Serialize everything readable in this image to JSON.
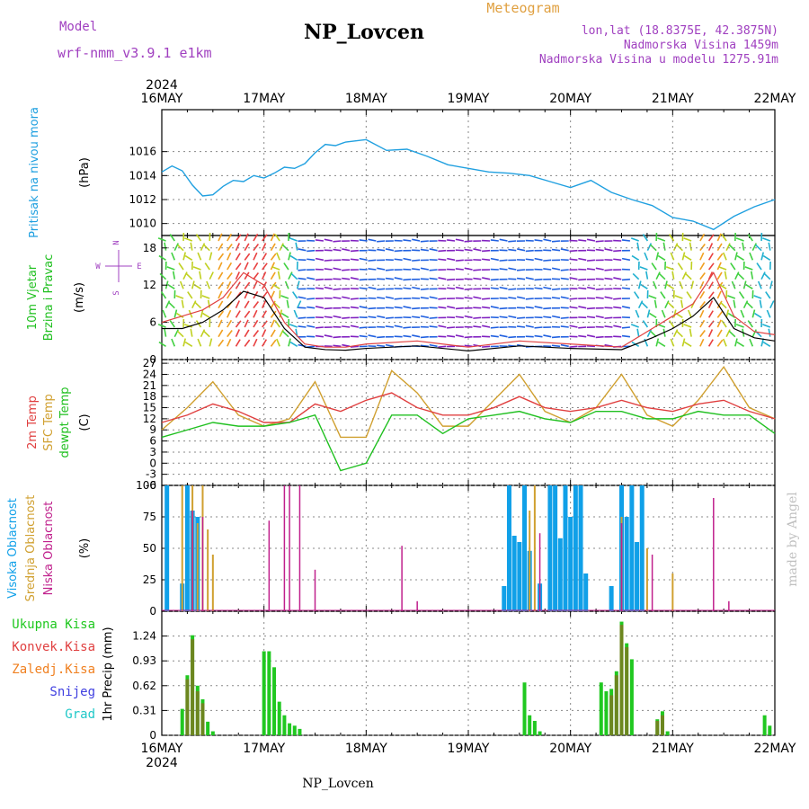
{
  "header": {
    "model_label": "Model",
    "model_name": "wrf-nmm_v3.9.1 e1km",
    "station_title": "NP_Lovcen",
    "meteogram_label": "Meteogram",
    "lonlat": "lon,lat (18.8375E, 42.3875N)",
    "altitude": "Nadmorska Visina 1459m",
    "model_altitude": "Nadmorska Visina u modelu 1275.91m",
    "footer_station": "NP_Lovcen",
    "credit": "made by Angel"
  },
  "colors": {
    "title_purple": "#a040c0",
    "title_orange": "#e0a040",
    "pressure": "#20a0e0",
    "temp2m": "#e04040",
    "sfc_temp": "#d0a030",
    "dewpoint": "#20c020",
    "high_cloud": "#10a0e8",
    "mid_cloud": "#d0a030",
    "low_cloud": "#c0208c",
    "total_precip": "#20c820",
    "conv_precip": "#e04040",
    "freezing_precip": "#f08020",
    "snow": "#4040e0",
    "hail": "#20c8c8",
    "credit": "#c0c0c0"
  },
  "time_axis": {
    "year": "2024",
    "day_labels": [
      "16MAY",
      "17MAY",
      "18MAY",
      "19MAY",
      "20MAY",
      "21MAY",
      "22MAY"
    ]
  },
  "chart_data": [
    {
      "type": "line",
      "panel": "pressure",
      "ylabel_lines": [
        "Pritisak na nivou mora"
      ],
      "unit": "(hPa)",
      "ylim": [
        1009,
        1019.5
      ],
      "yticks": [
        1010,
        1012,
        1014,
        1016
      ],
      "series": [
        {
          "x": [
            0,
            0.1,
            0.2,
            0.3,
            0.4,
            0.5,
            0.6,
            0.7,
            0.8,
            0.9,
            1.0,
            1.1,
            1.2,
            1.3,
            1.4,
            1.5,
            1.6,
            1.7,
            1.8,
            1.9,
            2.0,
            2.2,
            2.4,
            2.6,
            2.8,
            3.0,
            3.2,
            3.4,
            3.6,
            3.8,
            4.0,
            4.2,
            4.4,
            4.6,
            4.8,
            5.0,
            5.2,
            5.4,
            5.6,
            5.8,
            6.0
          ],
          "values": [
            1014.3,
            1014.8,
            1014.4,
            1013.2,
            1012.3,
            1012.4,
            1013.1,
            1013.6,
            1013.5,
            1014.0,
            1013.8,
            1014.2,
            1014.7,
            1014.6,
            1015.0,
            1015.9,
            1016.6,
            1016.5,
            1016.8,
            1016.9,
            1017.0,
            1016.1,
            1016.2,
            1015.6,
            1014.9,
            1014.6,
            1014.3,
            1014.2,
            1014.0,
            1013.5,
            1013.0,
            1013.6,
            1012.6,
            1012.0,
            1011.5,
            1010.5,
            1010.2,
            1009.5,
            1010.6,
            1011.4,
            1012.0
          ]
        }
      ]
    },
    {
      "type": "line",
      "panel": "wind",
      "ylabel_lines": [
        "10m Vjetar",
        "Brzina i Pravac"
      ],
      "unit": "(m/s)",
      "ylim": [
        0,
        20
      ],
      "yticks": [
        0,
        6,
        12,
        18
      ],
      "compass": [
        "N",
        "W",
        "E",
        "S"
      ],
      "series": [
        {
          "name": "speed",
          "x": [
            0,
            0.2,
            0.4,
            0.6,
            0.8,
            1.0,
            1.2,
            1.4,
            1.6,
            1.8,
            2.0,
            2.5,
            3.0,
            3.5,
            4.0,
            4.5,
            4.8,
            5.0,
            5.2,
            5.4,
            5.6,
            5.8,
            6.0
          ],
          "values": [
            5,
            5,
            6,
            8,
            11,
            10,
            5,
            2,
            1.6,
            1.5,
            1.8,
            2.2,
            1.4,
            2.2,
            1.8,
            1.6,
            3.5,
            5,
            7,
            10,
            5,
            3.5,
            3
          ]
        },
        {
          "name": "gust",
          "x": [
            0,
            0.2,
            0.4,
            0.6,
            0.8,
            1.0,
            1.2,
            1.4,
            1.6,
            1.8,
            2.0,
            2.5,
            3.0,
            3.5,
            4.0,
            4.5,
            4.8,
            5.0,
            5.2,
            5.4,
            5.6,
            5.8,
            6.0
          ],
          "values": [
            6,
            7,
            8,
            10,
            14,
            12,
            6,
            2.5,
            2,
            2,
            2.5,
            3,
            2,
            3,
            2.5,
            2,
            5,
            7,
            9,
            14,
            7,
            4.5,
            4
          ]
        }
      ]
    },
    {
      "type": "line",
      "panel": "temperature",
      "ylabel_lines": [
        "2m Temp",
        "SFC Temp",
        "dewpt Temp"
      ],
      "unit": "(C)",
      "ylim": [
        -6,
        28
      ],
      "yticks": [
        -6,
        -3,
        0,
        3,
        6,
        9,
        12,
        15,
        18,
        21,
        24,
        27
      ],
      "series": [
        {
          "name": "2m Temp",
          "x": [
            0,
            0.25,
            0.5,
            0.75,
            1.0,
            1.25,
            1.5,
            1.75,
            2.0,
            2.25,
            2.5,
            2.75,
            3.0,
            3.25,
            3.5,
            3.75,
            4.0,
            4.25,
            4.5,
            4.75,
            5.0,
            5.25,
            5.5,
            5.75,
            6.0
          ],
          "values": [
            11,
            13,
            16,
            14,
            11,
            11,
            16,
            14,
            17,
            19,
            15,
            13,
            13,
            15,
            18,
            15,
            14,
            15,
            17,
            15,
            14,
            16,
            17,
            14,
            12
          ]
        },
        {
          "name": "SFC Temp",
          "x": [
            0,
            0.25,
            0.5,
            0.75,
            1.0,
            1.25,
            1.5,
            1.75,
            2.0,
            2.25,
            2.5,
            2.75,
            3.0,
            3.25,
            3.5,
            3.75,
            4.0,
            4.25,
            4.5,
            4.75,
            5.0,
            5.25,
            5.5,
            5.75,
            6.0
          ],
          "values": [
            9,
            15,
            22,
            13,
            10,
            12,
            22,
            7,
            7,
            25,
            19,
            10,
            10,
            17,
            24,
            14,
            11,
            15,
            24,
            13,
            10,
            17,
            26,
            15,
            12
          ]
        },
        {
          "name": "dewpt Temp",
          "x": [
            0,
            0.25,
            0.5,
            0.75,
            1.0,
            1.25,
            1.5,
            1.75,
            2.0,
            2.25,
            2.5,
            2.75,
            3.0,
            3.25,
            3.5,
            3.75,
            4.0,
            4.25,
            4.5,
            4.75,
            5.0,
            5.25,
            5.5,
            5.75,
            6.0
          ],
          "values": [
            7,
            9,
            11,
            10,
            10,
            11,
            13,
            -2,
            0,
            13,
            13,
            8,
            12,
            13,
            14,
            12,
            11,
            14,
            14,
            12,
            12,
            14,
            13,
            13,
            8
          ]
        }
      ]
    },
    {
      "type": "bar",
      "panel": "clouds",
      "ylabel_lines": [
        "Visoka Oblacnost",
        "Srednja Oblacnost",
        "Niska Oblacnost"
      ],
      "unit": "(%)",
      "ylim": [
        0,
        100
      ],
      "yticks": [
        0,
        25,
        50,
        75,
        100
      ],
      "series": [
        {
          "name": "Visoka Oblacnost",
          "x": [
            0.05,
            0.2,
            0.25,
            0.3,
            0.35,
            3.35,
            3.4,
            3.45,
            3.5,
            3.55,
            3.6,
            3.7,
            3.8,
            3.85,
            3.9,
            3.95,
            4.0,
            4.05,
            4.1,
            4.15,
            4.4,
            4.5,
            4.55,
            4.6,
            4.65,
            4.7
          ],
          "values": [
            100,
            22,
            100,
            80,
            75,
            20,
            100,
            60,
            55,
            100,
            48,
            22,
            100,
            100,
            58,
            100,
            75,
            100,
            100,
            30,
            20,
            100,
            75,
            100,
            55,
            100
          ]
        },
        {
          "name": "Srednja Oblacnost",
          "x": [
            0.2,
            0.3,
            0.35,
            0.4,
            0.45,
            0.5,
            3.6,
            3.65,
            4.5,
            4.75,
            5.0
          ],
          "values": [
            100,
            100,
            70,
            100,
            65,
            45,
            80,
            100,
            75,
            50,
            30
          ]
        },
        {
          "name": "Niska Oblacnost",
          "x": [
            0.3,
            0.4,
            1.05,
            1.2,
            1.25,
            1.35,
            1.5,
            2.35,
            2.5,
            3.7,
            4.5,
            4.8,
            5.4,
            5.55
          ],
          "values": [
            80,
            75,
            72,
            100,
            100,
            100,
            33,
            52,
            8,
            62,
            70,
            45,
            90,
            8
          ]
        }
      ]
    },
    {
      "type": "bar",
      "panel": "precip",
      "ylabel_lines": [
        "Ukupna Kisa",
        "Konvek.Kisa",
        "Zaledj.Kisa",
        "Snijeg",
        "Grad"
      ],
      "unit": "1hr Precip (mm)",
      "ylim": [
        0,
        1.55
      ],
      "yticks": [
        0,
        0.31,
        0.62,
        0.93,
        1.24
      ],
      "series": [
        {
          "name": "Ukupna Kisa",
          "x": [
            0.2,
            0.25,
            0.3,
            0.35,
            0.4,
            0.45,
            0.5,
            1.0,
            1.05,
            1.1,
            1.15,
            1.2,
            1.25,
            1.3,
            1.35,
            3.55,
            3.6,
            3.65,
            3.7,
            4.3,
            4.35,
            4.4,
            4.45,
            4.5,
            4.55,
            4.6,
            4.85,
            4.9,
            4.95,
            5.9,
            5.95
          ],
          "values": [
            0.33,
            0.75,
            1.25,
            0.62,
            0.45,
            0.17,
            0.05,
            1.05,
            1.05,
            0.85,
            0.42,
            0.25,
            0.15,
            0.12,
            0.08,
            0.66,
            0.25,
            0.18,
            0.05,
            0.66,
            0.55,
            0.58,
            0.8,
            1.42,
            1.15,
            0.95,
            0.2,
            0.3,
            0.05,
            0.25,
            0.12
          ]
        },
        {
          "name": "Konvek.Kisa",
          "x": [
            0.25,
            0.3,
            0.35,
            0.4,
            4.4,
            4.45,
            4.5,
            4.55,
            4.85,
            4.9
          ],
          "values": [
            0.7,
            1.2,
            0.55,
            0.4,
            0.5,
            0.75,
            1.38,
            1.1,
            0.18,
            0.25
          ]
        }
      ]
    }
  ]
}
